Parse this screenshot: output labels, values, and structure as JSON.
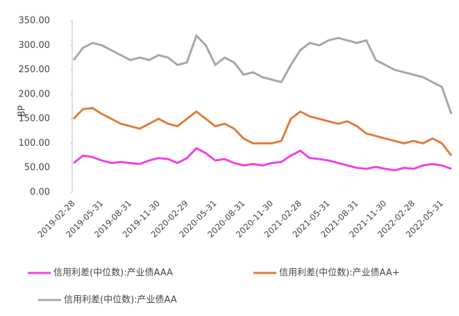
{
  "chart_data": {
    "type": "line",
    "y_label": "BP",
    "categories": [
      "2019-02-28",
      null,
      null,
      "2019-05-31",
      null,
      null,
      "2019-08-31",
      null,
      null,
      "2019-11-30",
      null,
      null,
      "2020-02-29",
      null,
      null,
      "2020-05-31",
      null,
      null,
      "2020-08-31",
      null,
      null,
      "2020-11-30",
      null,
      null,
      "2021-02-28",
      null,
      null,
      "2021-05-31",
      null,
      null,
      "2021-08-31",
      null,
      null,
      "2021-11-30",
      null,
      null,
      "2022-02-28",
      null,
      null,
      "2022-05-31",
      null
    ],
    "series": [
      {
        "name": "信用利差(中位数):产业债AAA",
        "color": "#f23fe3",
        "values": [
          60,
          75,
          72,
          65,
          60,
          62,
          60,
          58,
          65,
          70,
          68,
          60,
          70,
          90,
          80,
          65,
          68,
          60,
          55,
          58,
          55,
          60,
          62,
          75,
          85,
          70,
          68,
          65,
          60,
          55,
          50,
          48,
          52,
          48,
          45,
          50,
          48,
          55,
          58,
          55,
          48
        ]
      },
      {
        "name": "信用利差(中位数):产业债AA+",
        "color": "#e07b39",
        "values": [
          150,
          170,
          172,
          160,
          150,
          140,
          135,
          130,
          140,
          150,
          140,
          135,
          150,
          165,
          150,
          135,
          140,
          130,
          110,
          100,
          100,
          100,
          105,
          150,
          165,
          155,
          150,
          145,
          140,
          145,
          135,
          120,
          115,
          110,
          105,
          100,
          105,
          100,
          110,
          100,
          75
        ]
      },
      {
        "name": "信用利差(中位数):产业债AA",
        "color": "#a6a6a6",
        "values": [
          270,
          295,
          305,
          300,
          290,
          280,
          270,
          275,
          270,
          280,
          275,
          260,
          265,
          320,
          300,
          260,
          275,
          265,
          240,
          245,
          235,
          230,
          225,
          260,
          290,
          305,
          300,
          310,
          315,
          310,
          305,
          310,
          270,
          260,
          250,
          245,
          240,
          235,
          225,
          215,
          160
        ]
      }
    ],
    "ylim": [
      0,
      350
    ],
    "yticks": [
      {
        "value": 0,
        "label": "0.00"
      },
      {
        "value": 50,
        "label": "50.00"
      },
      {
        "value": 100,
        "label": "100.00"
      },
      {
        "value": 150,
        "label": "150.00"
      },
      {
        "value": 200,
        "label": "200.00"
      },
      {
        "value": 250,
        "label": "250.00"
      },
      {
        "value": 300,
        "label": "300.00"
      },
      {
        "value": 350,
        "label": "350.00"
      }
    ]
  }
}
